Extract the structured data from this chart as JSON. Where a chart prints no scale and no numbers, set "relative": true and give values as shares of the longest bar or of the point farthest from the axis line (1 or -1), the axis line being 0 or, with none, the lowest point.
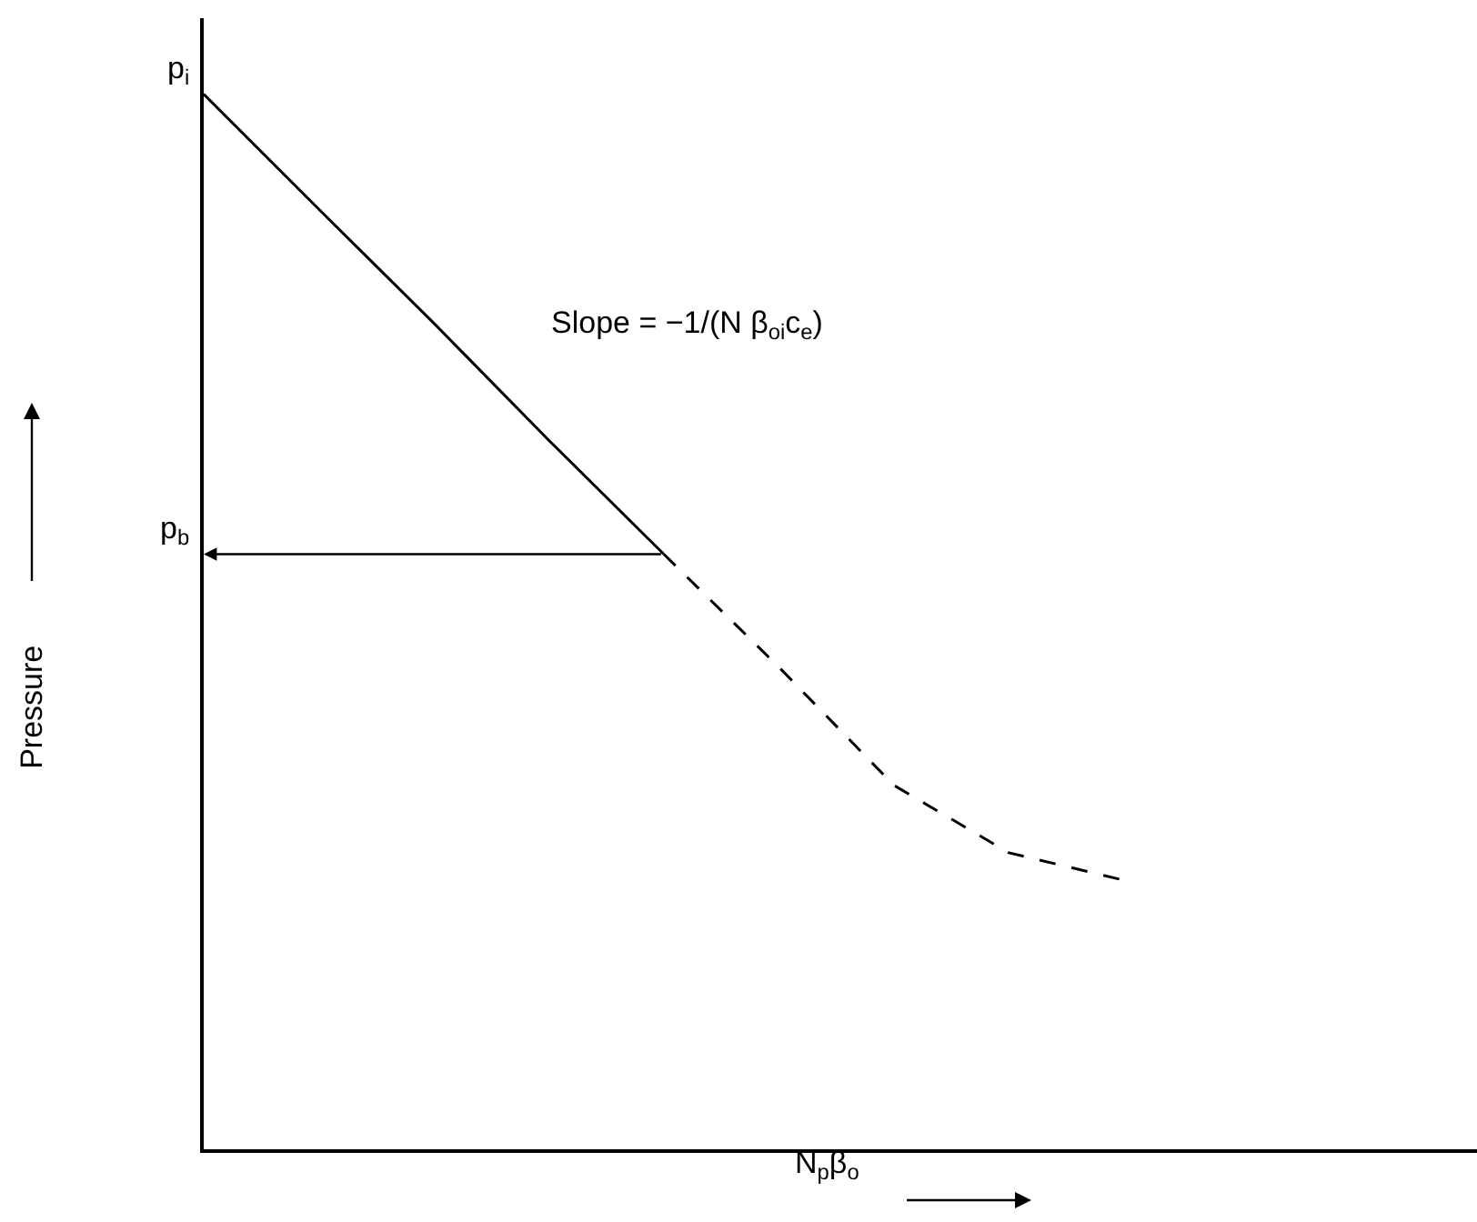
{
  "chart_data": {
    "type": "line",
    "relative": true,
    "xlabel": "N$_{p}$β$_{o}$",
    "ylabel": "Pressure",
    "marker": "none",
    "categories": [
      null,
      null,
      null,
      null,
      null,
      null,
      null,
      null,
      null
    ],
    "series": [
      {
        "color": "#000000",
        "line_style": "solid",
        "values": [
          1,
          0.891,
          0.783,
          0.672,
          0.564,
          null,
          null,
          null,
          null
        ]
      },
      {
        "color": "#000000",
        "line_style": "dashed",
        "values": [
          null,
          null,
          null,
          null,
          0.564,
          0.457,
          0.345,
          0.281,
          0.255
        ]
      }
    ],
    "annotations": [
      "p$_{i}$",
      "p$_{b}$",
      "Slope = −1/(N β$_{oi}$c$_{e}$)"
    ]
  }
}
